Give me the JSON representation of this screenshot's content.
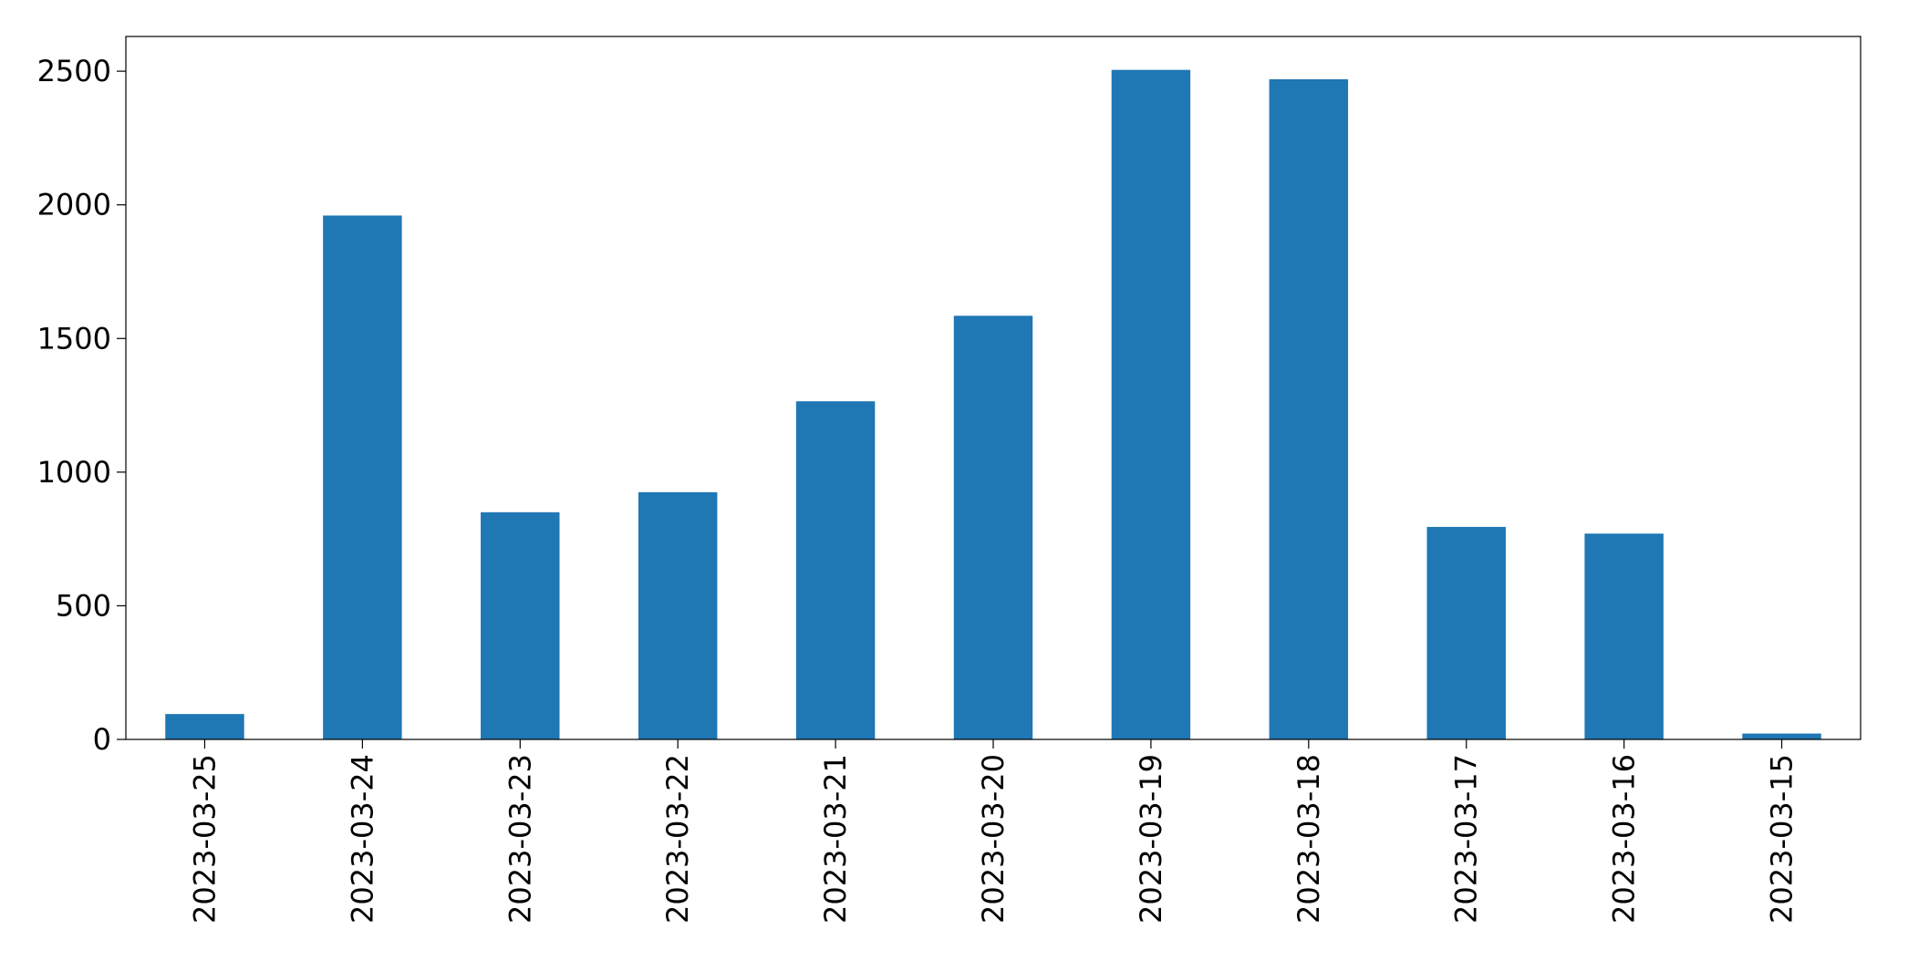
{
  "chart_data": {
    "type": "bar",
    "title": "",
    "xlabel": "",
    "ylabel": "",
    "categories": [
      "2023-03-25",
      "2023-03-24",
      "2023-03-23",
      "2023-03-22",
      "2023-03-21",
      "2023-03-20",
      "2023-03-19",
      "2023-03-18",
      "2023-03-17",
      "2023-03-16",
      "2023-03-15"
    ],
    "values": [
      95,
      1960,
      850,
      925,
      1265,
      1585,
      2505,
      2470,
      795,
      770,
      22
    ],
    "ylim": [
      0,
      2630
    ],
    "yticks": [
      0,
      500,
      1000,
      1500,
      2000,
      2500
    ],
    "bar_color": "#1f77b4",
    "grid": false,
    "legend": "none"
  }
}
